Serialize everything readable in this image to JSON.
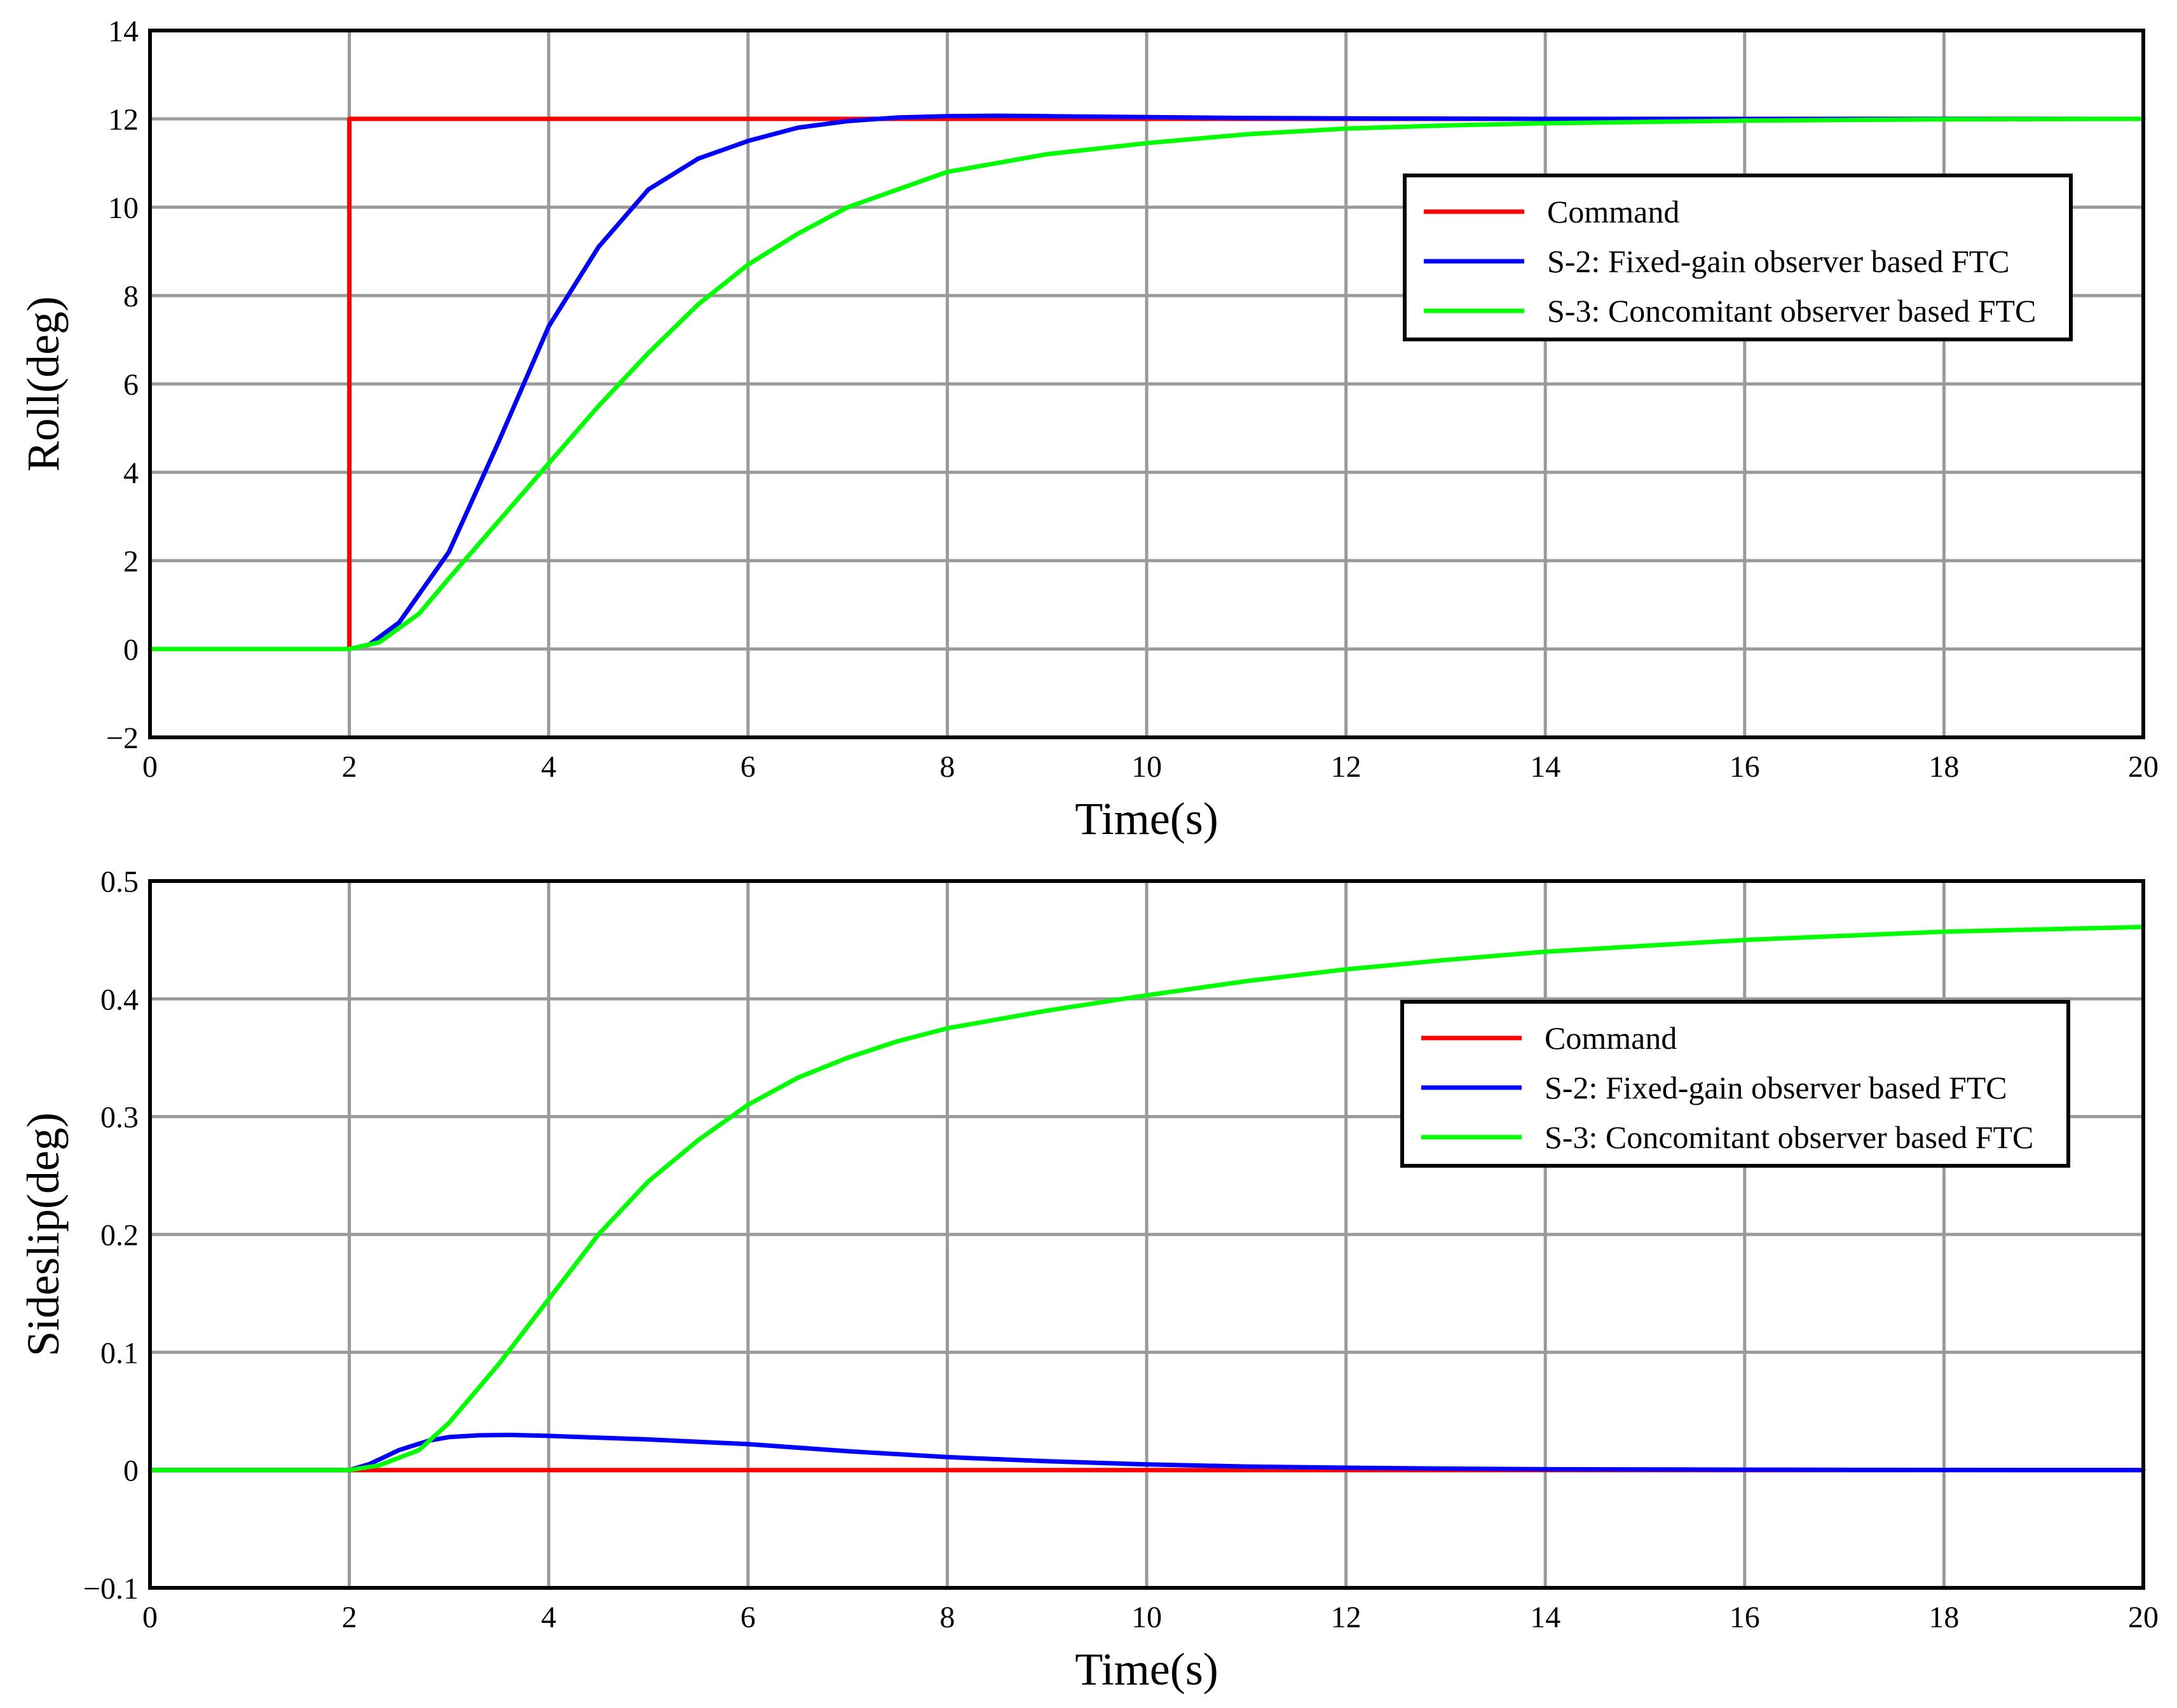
{
  "colors": {
    "command": "#ff0000",
    "s2": "#0000ff",
    "s3": "#00ff00",
    "grid": "#9a9a9a",
    "frame": "#000000"
  },
  "chart_data": [
    {
      "type": "line",
      "title": "",
      "xlabel": "Time(s)",
      "ylabel": "Roll(deg)",
      "xlim": [
        0,
        20
      ],
      "ylim": [
        -2,
        14
      ],
      "xticks": [
        "0",
        "2",
        "4",
        "6",
        "8",
        "10",
        "12",
        "14",
        "16",
        "18",
        "20"
      ],
      "yticks": [
        "−2",
        "0",
        "2",
        "4",
        "6",
        "8",
        "10",
        "12",
        "14"
      ],
      "grid": true,
      "legend": "upper-right",
      "series": [
        {
          "name": "Command",
          "color": "#ff0000",
          "x": [
            0,
            2,
            2,
            20
          ],
          "y": [
            0,
            0,
            12,
            12
          ]
        },
        {
          "name": "S-2: Fixed-gain observer based FTC",
          "color": "#0000ff",
          "x": [
            0,
            2,
            2.2,
            2.5,
            3,
            3.5,
            4,
            4.5,
            5,
            5.5,
            6,
            6.5,
            7,
            7.5,
            8,
            8.5,
            9,
            10,
            11,
            12,
            14,
            16,
            20
          ],
          "y": [
            0,
            0,
            0.1,
            0.6,
            2.2,
            4.7,
            7.3,
            9.1,
            10.4,
            11.1,
            11.5,
            11.8,
            11.95,
            12.03,
            12.06,
            12.07,
            12.06,
            12.04,
            12.02,
            12.01,
            12.0,
            12.0,
            12.0
          ]
        },
        {
          "name": "S-3: Concomitant observer based FTC",
          "color": "#00ff00",
          "x": [
            0,
            2,
            2.3,
            2.7,
            3,
            3.5,
            4,
            4.5,
            5,
            5.5,
            6,
            6.5,
            7,
            8,
            9,
            10,
            11,
            12,
            13,
            14,
            16,
            18,
            20
          ],
          "y": [
            0,
            0,
            0.15,
            0.8,
            1.6,
            2.9,
            4.2,
            5.5,
            6.7,
            7.8,
            8.7,
            9.4,
            10.0,
            10.8,
            11.2,
            11.45,
            11.65,
            11.78,
            11.85,
            11.9,
            11.96,
            11.99,
            12.0
          ]
        }
      ]
    },
    {
      "type": "line",
      "title": "",
      "xlabel": "Time(s)",
      "ylabel": "Sideslip(deg)",
      "xlim": [
        0,
        20
      ],
      "ylim": [
        -0.1,
        0.5
      ],
      "xticks": [
        "0",
        "2",
        "4",
        "6",
        "8",
        "10",
        "12",
        "14",
        "16",
        "18",
        "20"
      ],
      "yticks": [
        "−0.1",
        "0",
        "0.1",
        "0.2",
        "0.3",
        "0.4",
        "0.5"
      ],
      "grid": true,
      "legend": "upper-right",
      "series": [
        {
          "name": "Command",
          "color": "#ff0000",
          "x": [
            0,
            20
          ],
          "y": [
            0,
            0
          ]
        },
        {
          "name": "S-2: Fixed-gain observer based FTC",
          "color": "#0000ff",
          "x": [
            0,
            2,
            2.2,
            2.5,
            2.8,
            3,
            3.3,
            3.6,
            4,
            5,
            6,
            7,
            8,
            9,
            10,
            11,
            12,
            13,
            14,
            16,
            18,
            20
          ],
          "y": [
            0,
            0,
            0.005,
            0.017,
            0.025,
            0.028,
            0.0295,
            0.0298,
            0.029,
            0.026,
            0.022,
            0.016,
            0.011,
            0.0075,
            0.0048,
            0.003,
            0.002,
            0.0012,
            0.0007,
            0.0003,
            0.0001,
            0.0
          ]
        },
        {
          "name": "S-3: Concomitant observer based FTC",
          "color": "#00ff00",
          "x": [
            0,
            2,
            2.3,
            2.7,
            3,
            3.5,
            4,
            4.5,
            5,
            5.5,
            6,
            6.5,
            7,
            7.5,
            8,
            9,
            10,
            11,
            12,
            13,
            14,
            16,
            18,
            20
          ],
          "y": [
            0,
            0,
            0.004,
            0.017,
            0.04,
            0.09,
            0.145,
            0.2,
            0.245,
            0.28,
            0.31,
            0.333,
            0.35,
            0.364,
            0.375,
            0.39,
            0.403,
            0.415,
            0.425,
            0.433,
            0.44,
            0.45,
            0.457,
            0.461
          ]
        }
      ]
    }
  ]
}
